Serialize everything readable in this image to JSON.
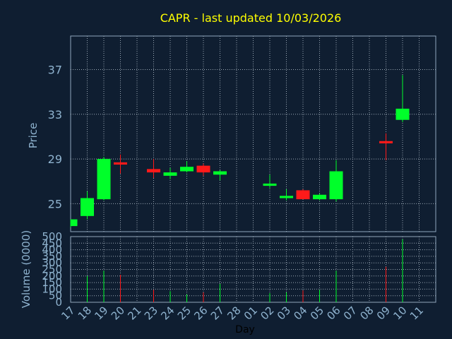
{
  "chart_data": [
    {
      "type": "candlestick",
      "title": "CAPR - last updated 10/03/2026",
      "ylabel": "Price",
      "ylim": [
        22.5,
        40
      ],
      "yticks": [
        25,
        29,
        33,
        37
      ],
      "x": [
        "17",
        "18",
        "19",
        "20",
        "21",
        "23",
        "24",
        "25",
        "26",
        "27",
        "28",
        "01",
        "02",
        "03",
        "04",
        "05",
        "06",
        "07",
        "08",
        "09",
        "10",
        "11"
      ],
      "candles": [
        {
          "x": "17",
          "open": 23.0,
          "high": 23.6,
          "low": 22.9,
          "close": 23.6
        },
        {
          "x": "18",
          "open": 23.9,
          "high": 26.1,
          "low": 23.6,
          "close": 25.5
        },
        {
          "x": "19",
          "open": 25.4,
          "high": 29.2,
          "low": 25.3,
          "close": 29.0
        },
        {
          "x": "20",
          "open": 28.7,
          "high": 29.4,
          "low": 27.7,
          "close": 28.5
        },
        {
          "x": "23",
          "open": 28.1,
          "high": 29.0,
          "low": 27.3,
          "close": 27.8
        },
        {
          "x": "24",
          "open": 27.5,
          "high": 28.2,
          "low": 27.2,
          "close": 27.8
        },
        {
          "x": "25",
          "open": 27.9,
          "high": 28.8,
          "low": 27.8,
          "close": 28.3
        },
        {
          "x": "26",
          "open": 28.4,
          "high": 28.6,
          "low": 27.5,
          "close": 27.8
        },
        {
          "x": "27",
          "open": 27.6,
          "high": 28.0,
          "low": 27.1,
          "close": 27.9
        },
        {
          "x": "02",
          "open": 26.6,
          "high": 27.6,
          "low": 26.4,
          "close": 26.8
        },
        {
          "x": "03",
          "open": 25.5,
          "high": 26.3,
          "low": 25.3,
          "close": 25.7
        },
        {
          "x": "04",
          "open": 26.2,
          "high": 26.3,
          "low": 25.4,
          "close": 25.4
        },
        {
          "x": "05",
          "open": 25.4,
          "high": 25.9,
          "low": 25.3,
          "close": 25.8
        },
        {
          "x": "06",
          "open": 25.4,
          "high": 28.9,
          "low": 25.2,
          "close": 27.9
        },
        {
          "x": "09",
          "open": 30.6,
          "high": 31.3,
          "low": 28.9,
          "close": 30.4
        },
        {
          "x": "10",
          "open": 32.5,
          "high": 36.5,
          "low": 32.3,
          "close": 33.5
        }
      ],
      "colors": {
        "up": "#00ff2a",
        "down": "#ff1a1a"
      }
    },
    {
      "type": "bar",
      "ylabel": "Volume (0000)",
      "xlabel": "Day",
      "ylim": [
        0,
        500
      ],
      "yticks": [
        0,
        50,
        100,
        150,
        200,
        250,
        300,
        350,
        400,
        450,
        500
      ],
      "categories": [
        "17",
        "18",
        "19",
        "20",
        "21",
        "23",
        "24",
        "25",
        "26",
        "27",
        "28",
        "01",
        "02",
        "03",
        "04",
        "05",
        "06",
        "07",
        "08",
        "09",
        "10",
        "11"
      ],
      "values": [
        0,
        200,
        240,
        210,
        0,
        95,
        85,
        60,
        75,
        140,
        0,
        0,
        70,
        75,
        90,
        95,
        240,
        0,
        0,
        270,
        480,
        0
      ],
      "directions": [
        "up",
        "up",
        "up",
        "down",
        "up",
        "down",
        "up",
        "up",
        "down",
        "up",
        "up",
        "up",
        "up",
        "up",
        "down",
        "up",
        "up",
        "up",
        "up",
        "down",
        "up",
        "up"
      ]
    }
  ]
}
